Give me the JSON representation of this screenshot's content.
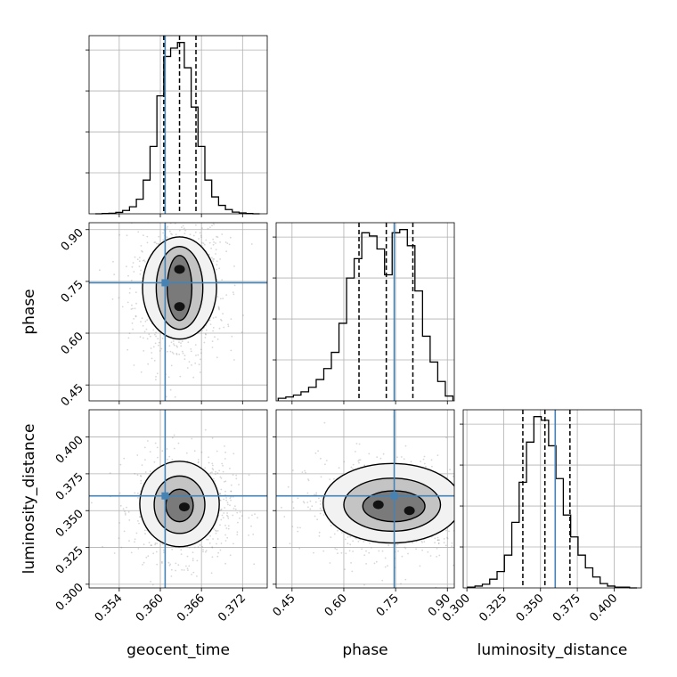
{
  "chart_data": {
    "type": "corner",
    "parameters": [
      "geocent_time",
      "phase",
      "luminosity_distance"
    ],
    "axis_labels": {
      "geocent_time": "geocent_time",
      "phase": "phase",
      "luminosity_distance": "luminosity_distance"
    },
    "ranges": {
      "geocent_time": [
        0.3496,
        0.3756
      ],
      "phase": [
        0.404,
        0.92
      ],
      "luminosity_distance": [
        0.2975,
        0.4185
      ]
    },
    "ticks": {
      "geocent_time": [
        0.354,
        0.36,
        0.366,
        0.372
      ],
      "phase": [
        0.45,
        0.6,
        0.75,
        0.9
      ],
      "luminosity_distance": [
        0.3,
        0.325,
        0.35,
        0.375,
        0.4
      ]
    },
    "tick_labels": {
      "geocent_time": [
        "0.354",
        "0.360",
        "0.366",
        "0.372"
      ],
      "phase": [
        "0.45",
        "0.60",
        "0.75",
        "0.90"
      ],
      "luminosity_distance": [
        "0.300",
        "0.325",
        "0.350",
        "0.375",
        "0.400"
      ]
    },
    "injection_values": {
      "geocent_time": 0.3607,
      "phase": 0.746,
      "luminosity_distance": 0.36
    },
    "quantiles": {
      "geocent_time": [
        0.3605,
        0.3628,
        0.3652
      ],
      "phase": [
        0.644,
        0.723,
        0.8
      ],
      "luminosity_distance": [
        0.338,
        0.353,
        0.37
      ]
    },
    "histograms": {
      "geocent_time": {
        "bin_edges": [
          0.3505,
          0.3515,
          0.3525,
          0.3535,
          0.3545,
          0.3555,
          0.3565,
          0.3575,
          0.3585,
          0.3595,
          0.3605,
          0.3615,
          0.3625,
          0.3635,
          0.3645,
          0.3655,
          0.3665,
          0.3675,
          0.3685,
          0.3695,
          0.3705,
          0.3715,
          0.3725,
          0.3735,
          0.3745
        ],
        "counts": [
          0,
          1,
          2,
          5,
          12,
          25,
          52,
          120,
          240,
          420,
          560,
          590,
          610,
          520,
          380,
          240,
          120,
          60,
          30,
          15,
          6,
          3,
          1,
          0
        ]
      },
      "phase": {
        "bin_edges": [
          0.41,
          0.432,
          0.454,
          0.476,
          0.498,
          0.52,
          0.542,
          0.564,
          0.586,
          0.608,
          0.63,
          0.652,
          0.674,
          0.696,
          0.718,
          0.74,
          0.762,
          0.784,
          0.806,
          0.828,
          0.85,
          0.872,
          0.894,
          0.916
        ],
        "counts": [
          8,
          12,
          18,
          28,
          42,
          66,
          100,
          150,
          240,
          380,
          440,
          520,
          510,
          470,
          390,
          520,
          530,
          480,
          340,
          200,
          120,
          60,
          15
        ]
      },
      "luminosity_distance": {
        "bin_edges": [
          0.3005,
          0.3055,
          0.3105,
          0.3155,
          0.3205,
          0.3255,
          0.3305,
          0.3355,
          0.3405,
          0.3455,
          0.3505,
          0.3555,
          0.3605,
          0.3655,
          0.3705,
          0.3755,
          0.3805,
          0.3855,
          0.3905,
          0.3955,
          0.4005,
          0.4055,
          0.4105,
          0.4155
        ],
        "counts": [
          2,
          5,
          10,
          24,
          45,
          90,
          180,
          290,
          400,
          470,
          460,
          390,
          300,
          200,
          140,
          90,
          55,
          30,
          12,
          5,
          2,
          2,
          0
        ]
      }
    },
    "pairs": [
      {
        "x": "geocent_time",
        "y": "phase",
        "peaks": [
          {
            "x": 0.3628,
            "y": 0.785
          },
          {
            "x": 0.3628,
            "y": 0.677
          }
        ],
        "contours": [
          {
            "level": "inner",
            "center": {
              "x": 0.3628,
              "y": 0.731
            },
            "half_width": 0.0018,
            "half_height": 0.094
          },
          {
            "level": "middle",
            "center": {
              "x": 0.3628,
              "y": 0.731
            },
            "half_width": 0.0034,
            "half_height": 0.12
          },
          {
            "level": "outer",
            "center": {
              "x": 0.3628,
              "y": 0.731
            },
            "half_width": 0.0054,
            "half_height": 0.148
          }
        ]
      },
      {
        "x": "geocent_time",
        "y": "luminosity_distance",
        "peaks": [
          {
            "x": 0.3635,
            "y": 0.3525
          }
        ],
        "contours": [
          {
            "level": "inner",
            "center": {
              "x": 0.3628,
              "y": 0.3535
            },
            "half_width": 0.002,
            "half_height": 0.011
          },
          {
            "level": "middle",
            "center": {
              "x": 0.3628,
              "y": 0.354
            },
            "half_width": 0.0037,
            "half_height": 0.0195
          },
          {
            "level": "outer",
            "center": {
              "x": 0.3628,
              "y": 0.3545
            },
            "half_width": 0.0058,
            "half_height": 0.029
          }
        ]
      },
      {
        "x": "phase",
        "y": "luminosity_distance",
        "peaks": [
          {
            "x": 0.7,
            "y": 0.354
          },
          {
            "x": 0.79,
            "y": 0.35
          }
        ],
        "contours": [
          {
            "level": "inner",
            "center": {
              "x": 0.745,
              "y": 0.353
            },
            "half_width": 0.09,
            "half_height": 0.0105
          },
          {
            "level": "middle",
            "center": {
              "x": 0.74,
              "y": 0.354
            },
            "half_width": 0.14,
            "half_height": 0.018
          },
          {
            "level": "outer",
            "center": {
              "x": 0.74,
              "y": 0.355
            },
            "half_width": 0.2,
            "half_height": 0.027
          }
        ]
      }
    ],
    "grid": true,
    "colors": {
      "truth": "#4682b4",
      "histogram": "#000000",
      "quantile": "#000000",
      "contour": "#000000",
      "scatter": "#8c8c8c",
      "density": "#000000"
    }
  }
}
